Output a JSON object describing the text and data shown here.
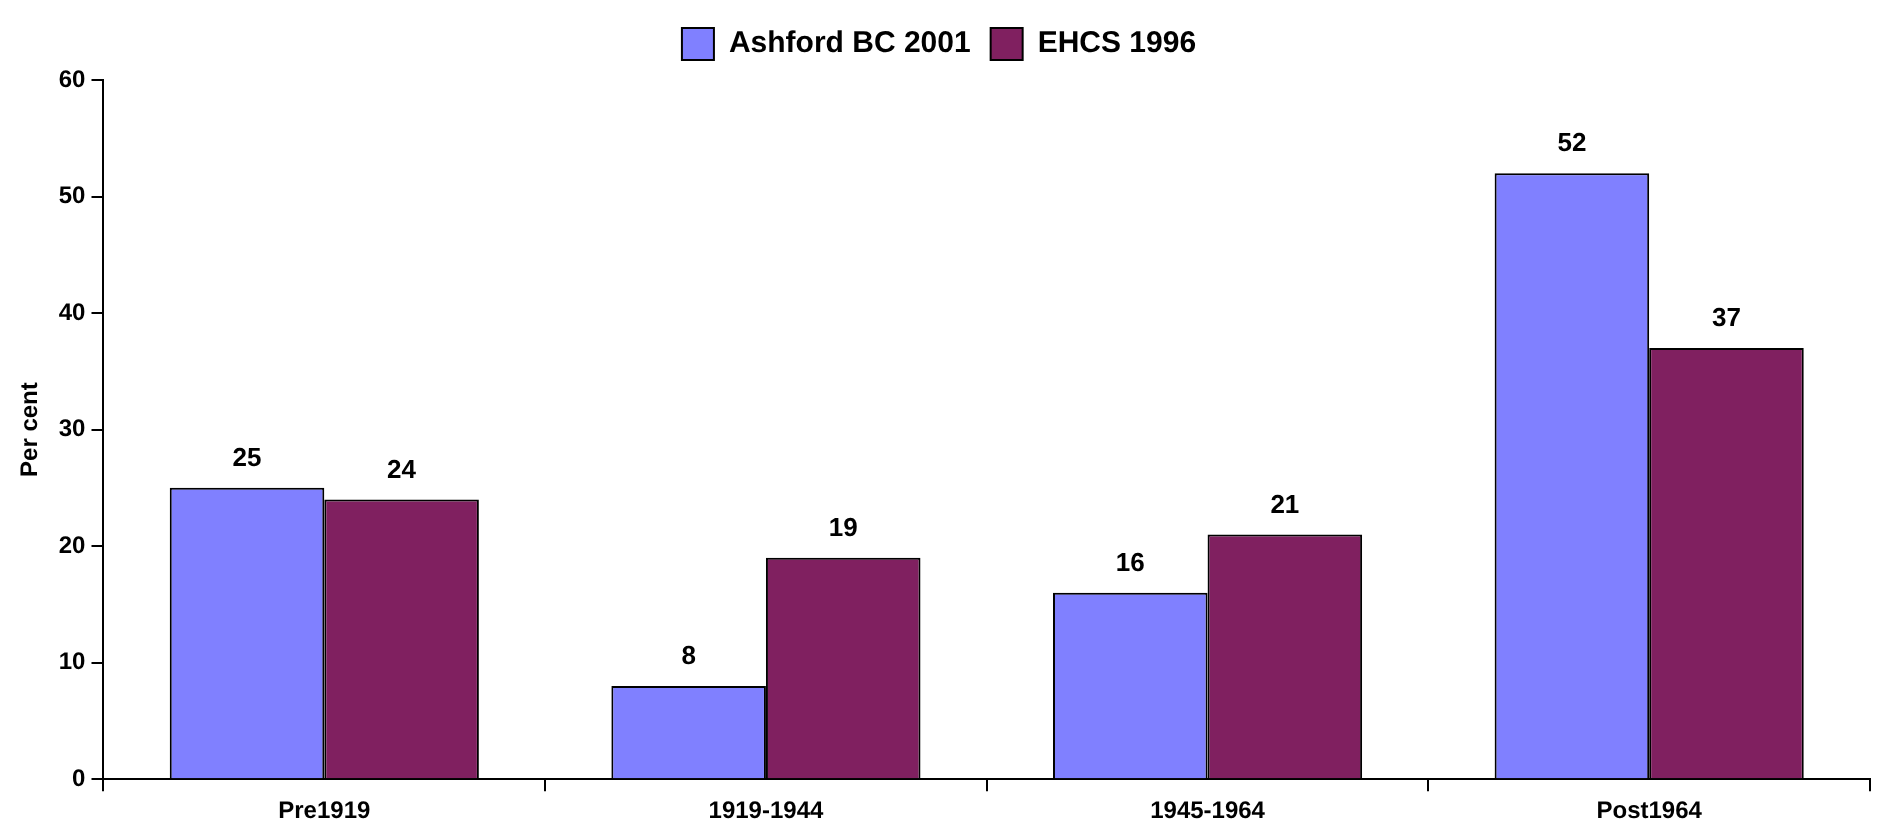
{
  "chart_data": {
    "type": "bar",
    "ylabel": "Per cent",
    "categories": [
      "Pre1919",
      "1919-1944",
      "1945-1964",
      "Post1964"
    ],
    "series": [
      {
        "name": "Ashford BC 2001",
        "color": "#8080ff",
        "values": [
          25,
          8,
          16,
          52
        ]
      },
      {
        "name": "EHCS 1996",
        "color": "#802060",
        "values": [
          24,
          19,
          21,
          37
        ]
      }
    ],
    "ylim": [
      0,
      60
    ],
    "yticks": [
      0,
      10,
      20,
      30,
      40,
      50,
      60
    ],
    "grid": false,
    "legend": "top",
    "data_labels": true
  }
}
